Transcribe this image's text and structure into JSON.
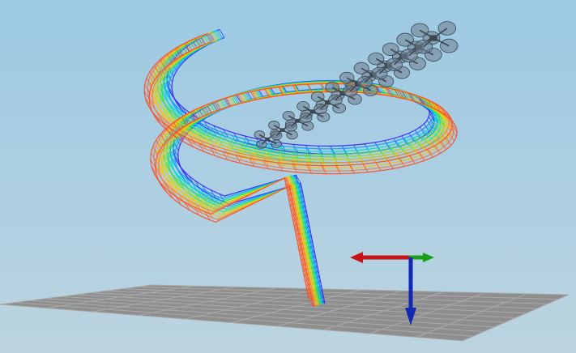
{
  "viewport": {
    "background_top": "#9cc9e3",
    "background_bottom": "#bcd4e0"
  },
  "ground_grid": {
    "fill": "#8e8e8e",
    "line_color": "#a9a9a9",
    "divisions": 10
  },
  "axis_gizmo": {
    "x_axis_color": "#c81414",
    "y_axis_color": "#19a019",
    "z_axis_color": "#1428b4"
  },
  "trajectory_ribbons": {
    "color_ramp": [
      "#2a2aff",
      "#00a0ff",
      "#00e0c0",
      "#40e040",
      "#c8e000",
      "#ffc000",
      "#ff7a30",
      "#ff4a20"
    ],
    "count": 8
  },
  "robot_models": {
    "count": 12,
    "body_color": "#3c4650",
    "rotor_color": "#6e7e8e"
  }
}
